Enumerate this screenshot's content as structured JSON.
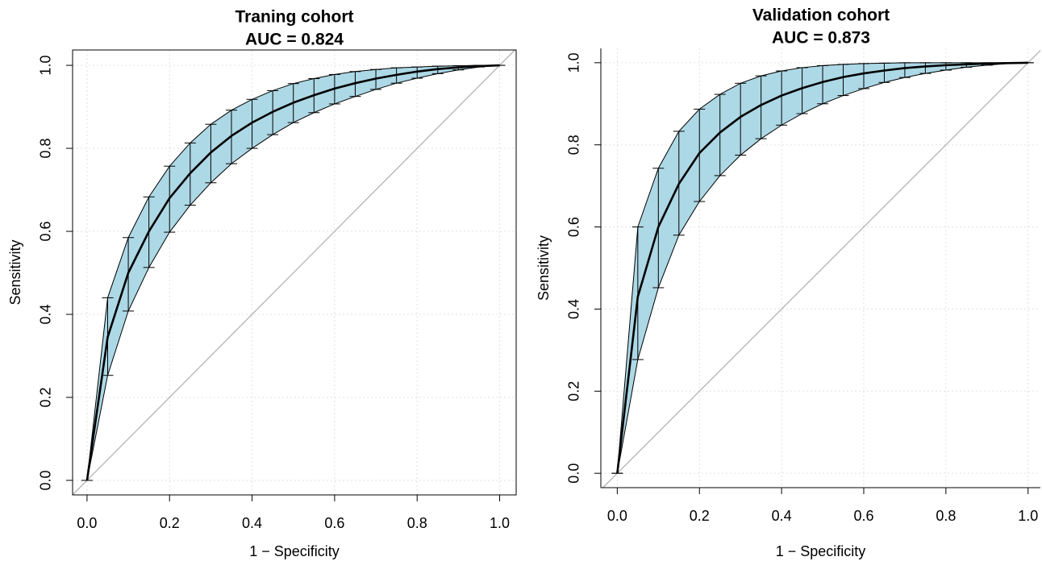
{
  "chart_data": [
    {
      "type": "roc",
      "title": "Traning cohort",
      "subtitle": "AUC =  0.824",
      "xlabel": "1 − Specificity",
      "ylabel": "Sensitivity",
      "x": [
        0,
        0.05,
        0.1,
        0.15,
        0.2,
        0.25,
        0.3,
        0.35,
        0.4,
        0.45,
        0.5,
        0.55,
        0.6,
        0.65,
        0.7,
        0.75,
        0.8,
        0.85,
        0.9,
        0.95,
        1
      ],
      "values": [
        0,
        0.345,
        0.5,
        0.6,
        0.68,
        0.74,
        0.79,
        0.83,
        0.862,
        0.888,
        0.91,
        0.928,
        0.944,
        0.957,
        0.968,
        0.977,
        0.985,
        0.991,
        0.995,
        0.998,
        1
      ],
      "lower": [
        0,
        0.253,
        0.408,
        0.513,
        0.598,
        0.663,
        0.717,
        0.763,
        0.8,
        0.833,
        0.862,
        0.886,
        0.907,
        0.925,
        0.942,
        0.957,
        0.969,
        0.98,
        0.989,
        0.996,
        1
      ],
      "upper": [
        0,
        0.44,
        0.585,
        0.683,
        0.757,
        0.813,
        0.858,
        0.892,
        0.918,
        0.939,
        0.956,
        0.968,
        0.978,
        0.985,
        0.99,
        0.994,
        0.996,
        0.998,
        0.999,
        1,
        1
      ],
      "color": "#000000",
      "band_color": "#add8e6",
      "diagonal_color": "#b3b3b3",
      "xlim": [
        -0.035,
        1.04
      ],
      "ylim": [
        -0.035,
        1.037
      ],
      "xticks": [
        {
          "value": 0,
          "label": "0.0"
        },
        0.2,
        0.4,
        0.6,
        0.8,
        {
          "value": 1,
          "label": "1.0"
        }
      ],
      "yticks": [
        {
          "value": 0,
          "label": "0.0"
        },
        0.2,
        0.4,
        0.6,
        0.8,
        {
          "value": 1,
          "label": "1.0"
        }
      ],
      "grid": true,
      "box": true
    },
    {
      "type": "roc",
      "title": "Validation cohort",
      "subtitle": "AUC =  0.873",
      "xlabel": "1 − Specificity",
      "ylabel": "Sensitivity",
      "x": [
        0,
        0.05,
        0.1,
        0.15,
        0.2,
        0.25,
        0.3,
        0.35,
        0.4,
        0.45,
        0.5,
        0.55,
        0.6,
        0.65,
        0.7,
        0.75,
        0.8,
        0.85,
        0.9,
        0.95,
        1
      ],
      "values": [
        0,
        0.43,
        0.6,
        0.705,
        0.78,
        0.83,
        0.868,
        0.897,
        0.92,
        0.938,
        0.953,
        0.965,
        0.974,
        0.981,
        0.987,
        0.991,
        0.994,
        0.996,
        0.998,
        0.999,
        1
      ],
      "lower": [
        0,
        0.277,
        0.452,
        0.58,
        0.662,
        0.725,
        0.775,
        0.815,
        0.848,
        0.876,
        0.9,
        0.92,
        0.937,
        0.952,
        0.964,
        0.974,
        0.982,
        0.989,
        0.994,
        0.998,
        1
      ],
      "upper": [
        0,
        0.6,
        0.743,
        0.833,
        0.887,
        0.923,
        0.95,
        0.968,
        0.98,
        0.988,
        0.993,
        0.996,
        0.998,
        0.999,
        1,
        1,
        1,
        1,
        1,
        1,
        1
      ],
      "color": "#000000",
      "band_color": "#add8e6",
      "diagonal_color": "#b3b3b3",
      "xlim": [
        -0.04,
        1.03
      ],
      "ylim": [
        -0.035,
        1.035
      ],
      "xticks": [
        {
          "value": 0,
          "label": "0.0"
        },
        0.2,
        0.4,
        0.6,
        0.8,
        {
          "value": 1,
          "label": "1.0"
        }
      ],
      "yticks": [
        {
          "value": 0,
          "label": "0.0"
        },
        0.2,
        0.4,
        0.6,
        0.8,
        {
          "value": 1,
          "label": "1.0"
        }
      ],
      "grid": true,
      "box": false
    }
  ]
}
